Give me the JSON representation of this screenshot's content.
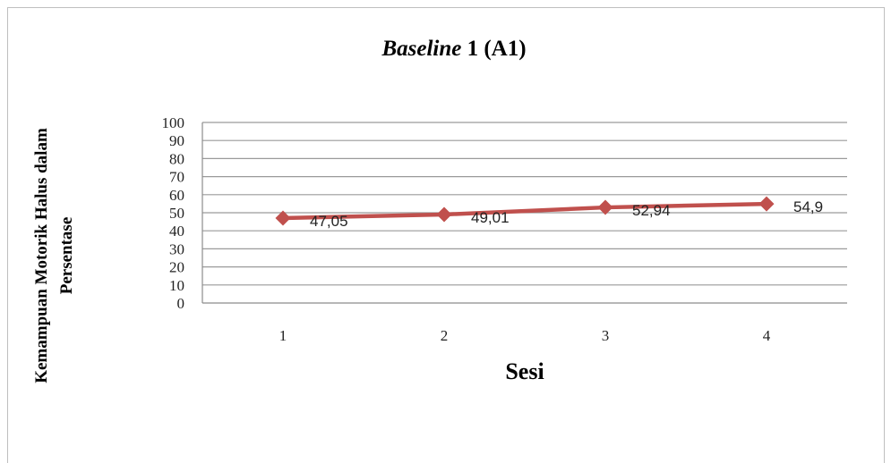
{
  "chart_data": {
    "type": "line",
    "title_italic": "Baseline",
    "title_rest": " 1 (A1)",
    "xlabel": "Sesi",
    "ylabel_line1": "Kemampuan Motorik Halus dalam",
    "ylabel_line2": "Persentase",
    "categories": [
      "1",
      "2",
      "3",
      "4"
    ],
    "series": [
      {
        "values": [
          47.05,
          49.01,
          52.94,
          54.9
        ],
        "labels": [
          "47,05",
          "49,01",
          "52,94",
          "54,9"
        ],
        "color": "#c0504d"
      }
    ],
    "ylim": [
      0,
      100
    ],
    "yticks": [
      0,
      10,
      20,
      30,
      40,
      50,
      60,
      70,
      80,
      90,
      100
    ],
    "grid": true,
    "marker": "diamond"
  }
}
